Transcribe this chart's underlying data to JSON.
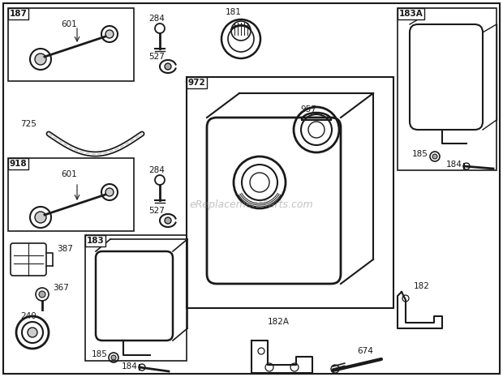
{
  "background_color": "#ffffff",
  "watermark": "eReplacementParts.com",
  "fig_w": 6.2,
  "fig_h": 4.65,
  "dpi": 100
}
